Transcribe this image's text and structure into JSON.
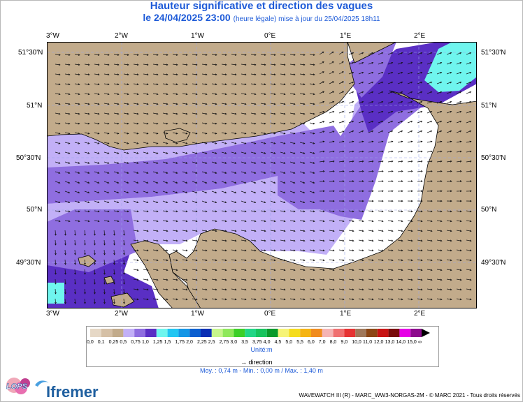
{
  "title": {
    "line1": "Hauteur significative et direction des vagues",
    "date": "le 24/04/2025 23:00",
    "note": "(heure légale) mise à jour du 25/04/2025 18h11"
  },
  "axes": {
    "lon_labels": [
      "3°W",
      "2°W",
      "1°W",
      "0°E",
      "1°E",
      "2°E"
    ],
    "lat_labels": [
      "51°30'N",
      "51°N",
      "50°30'N",
      "50°N",
      "49°30'N"
    ]
  },
  "colors": {
    "land": "#c2ab8b",
    "sea_light": "#c2b0f7",
    "sea_mid": "#8f6ee0",
    "sea_dark": "#5a2fc4",
    "sea_cyan": "#6ff5ee",
    "title": "#1e5bd8"
  },
  "legend": {
    "labels": [
      "0,0",
      "0,1",
      "0,25",
      "0,5",
      "0,75",
      "1,0",
      "1,25",
      "1,5",
      "1,75",
      "2,0",
      "2,25",
      "2,5",
      "2,75",
      "3,0",
      "3,5",
      "3,75",
      "4,0",
      "4,5",
      "5,0",
      "5,5",
      "6,0",
      "7,0",
      "8,0",
      "9,0",
      "10,0",
      "11,0",
      "12,0",
      "13,0",
      "14,0",
      "15,0",
      "∞"
    ],
    "colors": [
      "#e6d8c6",
      "#d5c0a6",
      "#c2ab8b",
      "#c2b0f7",
      "#8f6ee0",
      "#5a2fc4",
      "#6ff5ee",
      "#22c6f2",
      "#1496e6",
      "#0b5fd0",
      "#0a2fb4",
      "#c6f58c",
      "#8ee85a",
      "#3ccf28",
      "#22d686",
      "#17c45e",
      "#0a9a2c",
      "#f6f478",
      "#f5dc1e",
      "#f5b414",
      "#f08c1e",
      "#f5b4b4",
      "#f07070",
      "#e63232",
      "#a0785a",
      "#8c4614",
      "#c81414",
      "#780a0a",
      "#e600e6",
      "#8c0a8c"
    ],
    "unit": "Unité:m",
    "direction_label": "direction",
    "stats": "Moy. : 0,74 m   -   Min. : 0,00 m / Max. : 1,40 m"
  },
  "credits": "WAVEWATCH III (R) - MARC_WW3-NORGAS-2M - © MARC 2021 - Tous droits réservés",
  "logos": {
    "lops": "LOPS",
    "ifremer": "Ifremer"
  }
}
